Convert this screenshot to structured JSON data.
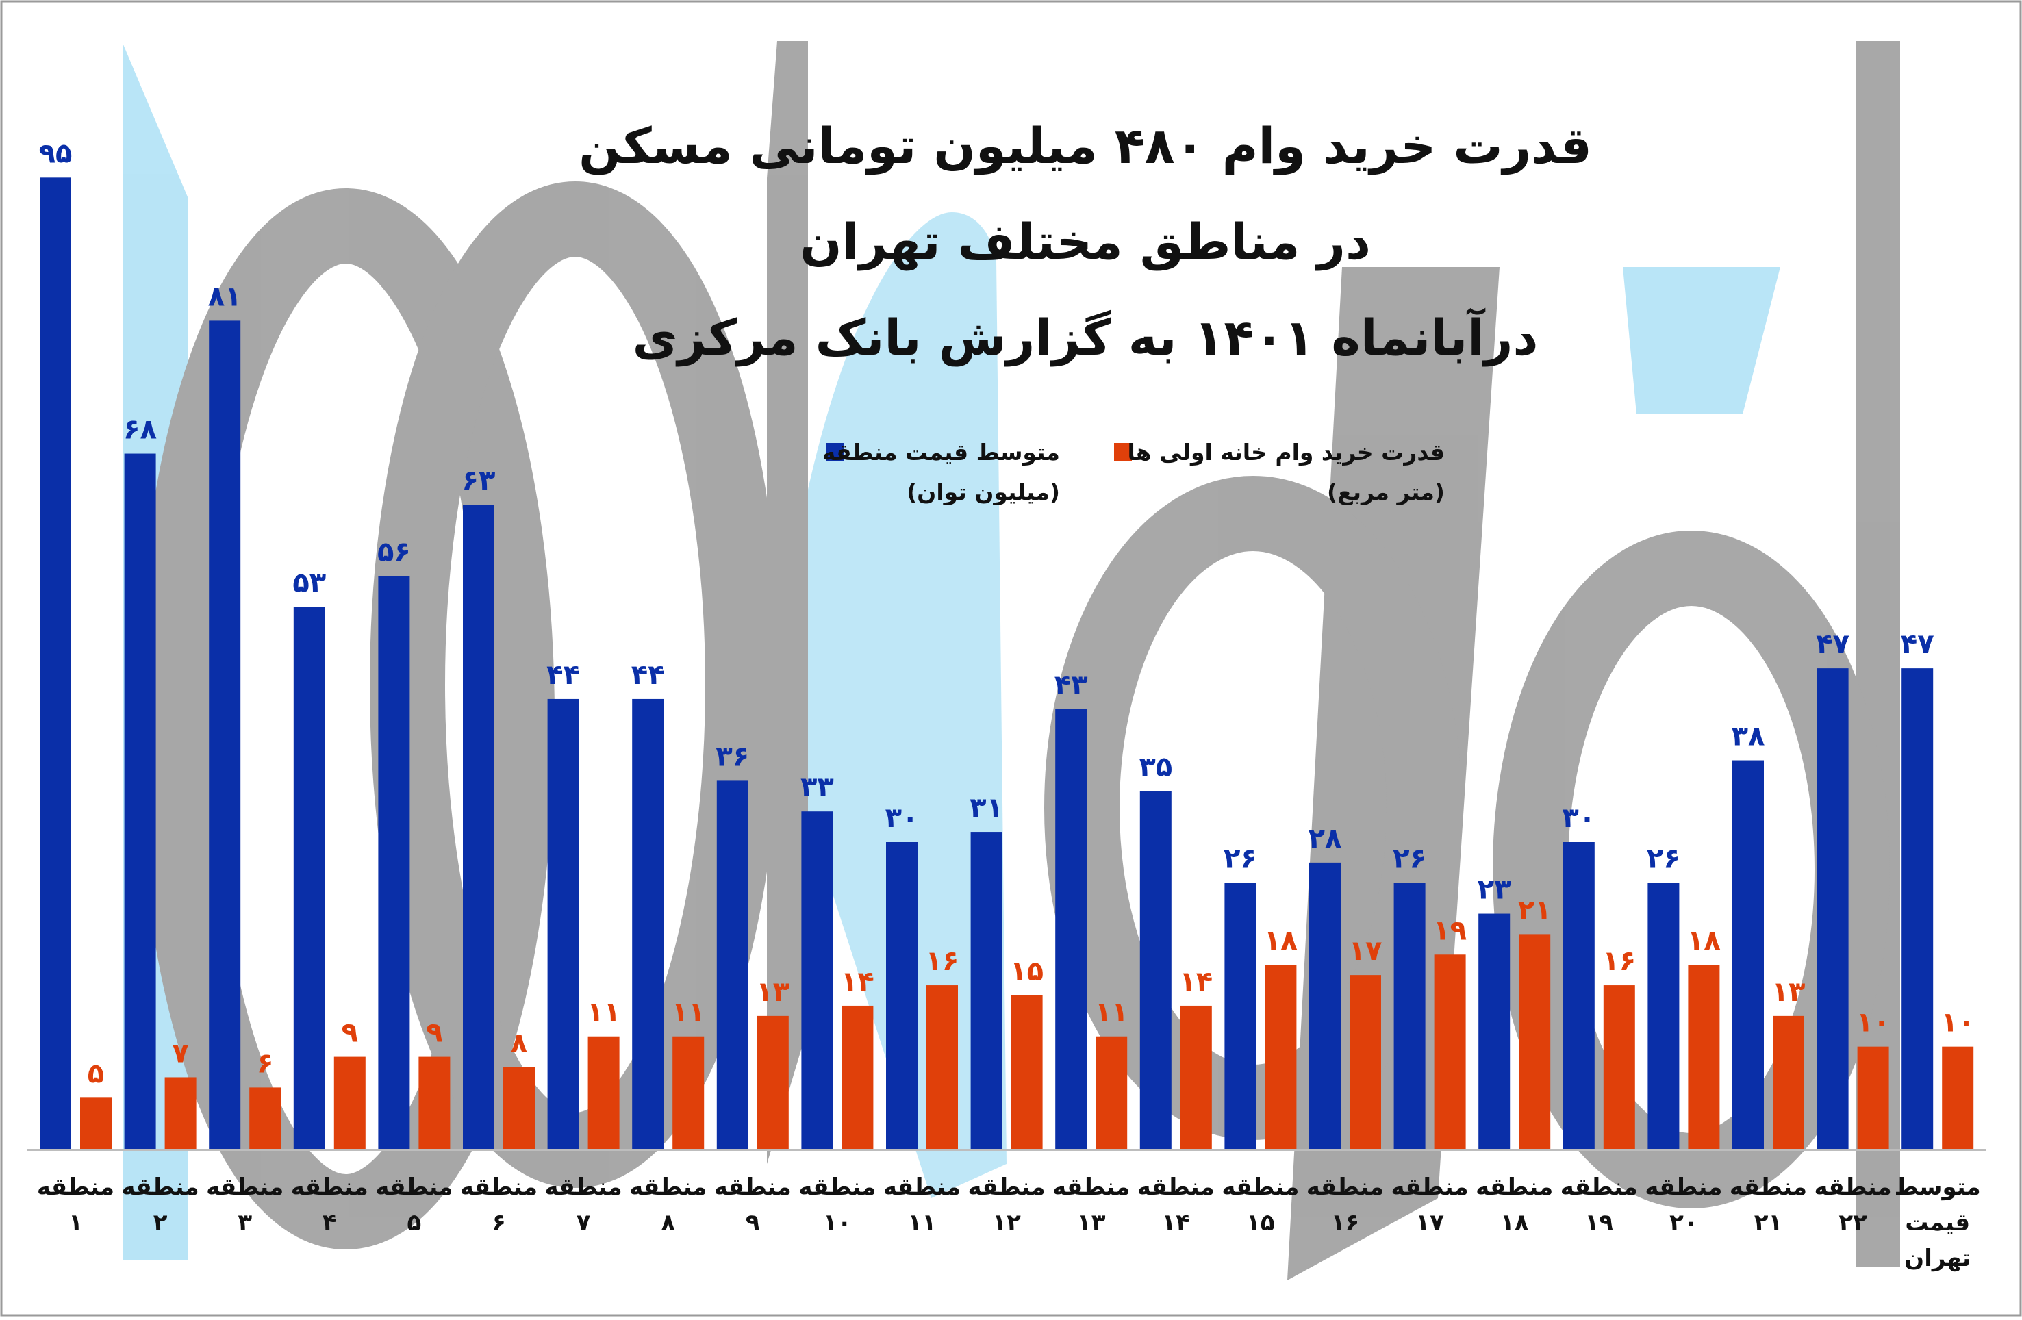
{
  "chart_data": {
    "type": "bar",
    "title_lines": [
      "قدرت خرید وام ۴۸۰ میلیون تومانی مسکن",
      "در مناطق مختلف تهران",
      "درآبانماه ۱۴۰۱ به گزارش بانک مرکزی"
    ],
    "legend": [
      {
        "name_lines": [
          "قدرت خرید وام خانه اولی ها",
          "(متر مربع)"
        ],
        "color": "#e0400a"
      },
      {
        "name_lines": [
          "متوسط قیمت منطقه",
          "(میلیون توان)"
        ],
        "color": "#0a2fa8"
      }
    ],
    "categories": [
      [
        "منطقه",
        "۱"
      ],
      [
        "منطقه",
        "۲"
      ],
      [
        "منطقه",
        "۳"
      ],
      [
        "منطقه",
        "۴"
      ],
      [
        "منطقه",
        "۵"
      ],
      [
        "منطقه",
        "۶"
      ],
      [
        "منطقه",
        "۷"
      ],
      [
        "منطقه",
        "۸"
      ],
      [
        "منطقه",
        "۹"
      ],
      [
        "منطقه",
        "۱۰"
      ],
      [
        "منطقه",
        "۱۱"
      ],
      [
        "منطقه",
        "۱۲"
      ],
      [
        "منطقه",
        "۱۳"
      ],
      [
        "منطقه",
        "۱۴"
      ],
      [
        "منطقه",
        "۱۵"
      ],
      [
        "منطقه",
        "۱۶"
      ],
      [
        "منطقه",
        "۱۷"
      ],
      [
        "منطقه",
        "۱۸"
      ],
      [
        "منطقه",
        "۱۹"
      ],
      [
        "منطقه",
        "۲۰"
      ],
      [
        "منطقه",
        "۲۱"
      ],
      [
        "منطقه",
        "۲۲"
      ],
      [
        "متوسط",
        "قیمت",
        "تهران"
      ]
    ],
    "series": [
      {
        "name": "متوسط قیمت منطقه (میلیون توان)",
        "color": "#0a2fa8",
        "values": [
          95,
          68,
          81,
          53,
          56,
          63,
          44,
          44,
          36,
          33,
          30,
          31,
          43,
          35,
          26,
          28,
          26,
          23,
          30,
          26,
          38,
          47,
          47
        ],
        "labels": [
          "۹۵",
          "۶۸",
          "۸۱",
          "۵۳",
          "۵۶",
          "۶۳",
          "۴۴",
          "۴۴",
          "۳۶",
          "۳۳",
          "۳۰",
          "۳۱",
          "۴۳",
          "۳۵",
          "۲۶",
          "۲۸",
          "۲۶",
          "۲۳",
          "۳۰",
          "۲۶",
          "۳۸",
          "۴۷",
          "۴۷"
        ]
      },
      {
        "name": "قدرت خرید وام خانه اولی ها (متر مربع)",
        "color": "#e0400a",
        "values": [
          5,
          7,
          6,
          9,
          9,
          8,
          11,
          11,
          13,
          14,
          16,
          15,
          11,
          14,
          18,
          17,
          19,
          21,
          16,
          18,
          13,
          10,
          10
        ],
        "labels": [
          "۵",
          "۷",
          "۶",
          "۹",
          "۹",
          "۸",
          "۱۱",
          "۱۱",
          "۱۳",
          "۱۴",
          "۱۶",
          "۱۵",
          "۱۱",
          "۱۴",
          "۱۸",
          "۱۷",
          "۱۹",
          "۲۱",
          "۱۶",
          "۱۸",
          "۱۳",
          "۱۰",
          "۱۰"
        ]
      }
    ],
    "ylim": [
      0,
      105
    ],
    "grid": false,
    "legend_position": "top-center"
  }
}
